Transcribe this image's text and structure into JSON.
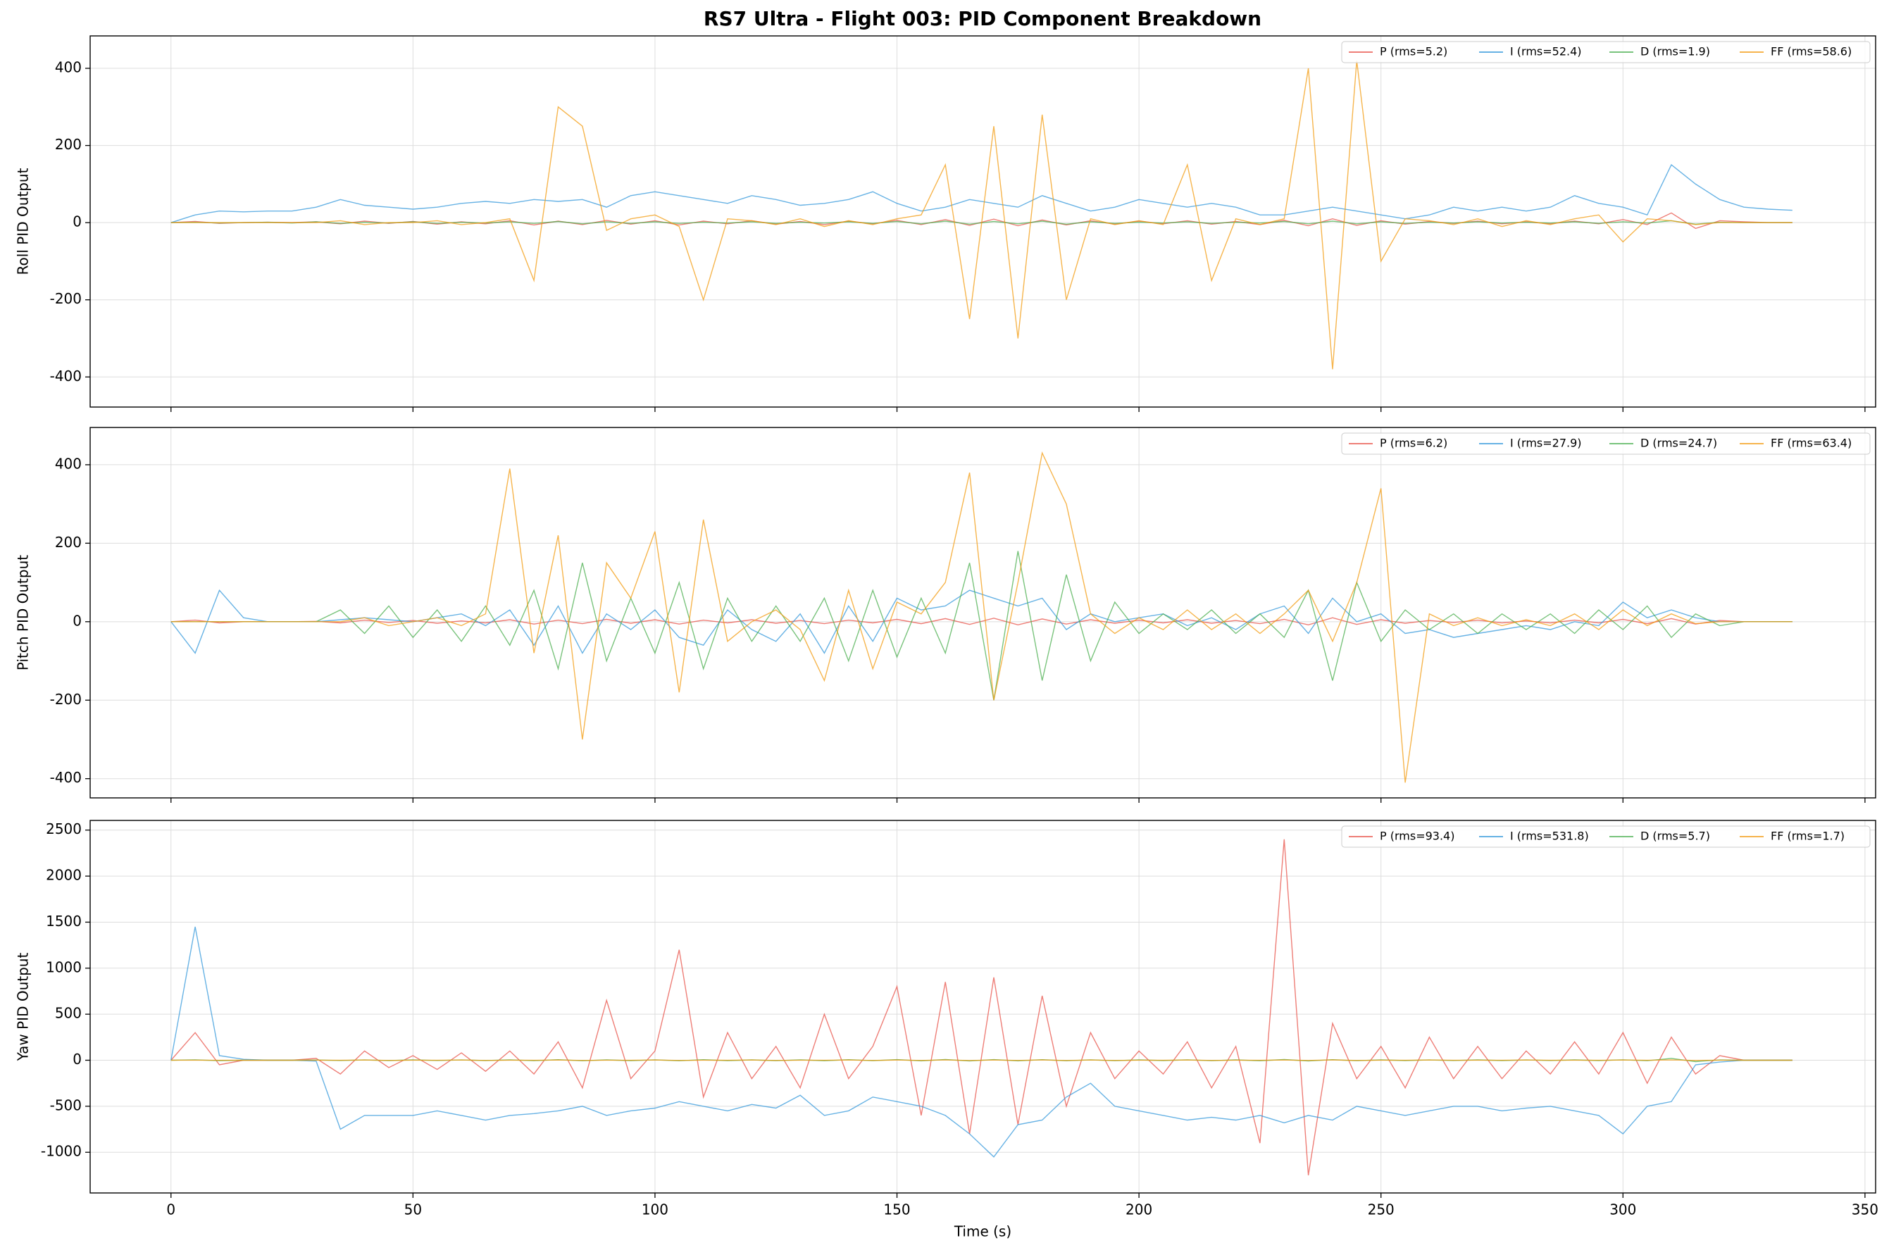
{
  "title": "RS7 Ultra - Flight 003: PID Component Breakdown",
  "chart_data": [
    {
      "type": "line",
      "ylabel": "Roll PID Output",
      "x": [
        0,
        5,
        10,
        15,
        20,
        25,
        30,
        35,
        40,
        45,
        50,
        55,
        60,
        65,
        70,
        75,
        80,
        85,
        90,
        95,
        100,
        105,
        110,
        115,
        120,
        125,
        130,
        135,
        140,
        145,
        150,
        155,
        160,
        165,
        170,
        175,
        180,
        185,
        190,
        195,
        200,
        205,
        210,
        215,
        220,
        225,
        230,
        235,
        240,
        245,
        250,
        255,
        260,
        265,
        270,
        275,
        280,
        285,
        290,
        295,
        300,
        305,
        310,
        315,
        320,
        325,
        330,
        335
      ],
      "xlim": [
        -16.7,
        352.2
      ],
      "xticks": [
        0,
        50,
        100,
        150,
        200,
        250,
        300,
        350
      ],
      "ylim": [
        -478,
        484
      ],
      "yticks": [
        -400,
        -200,
        0,
        200,
        400
      ],
      "grid": true,
      "legend": "upper right",
      "series": [
        {
          "name": "P (rms=5.2)",
          "color": "#e8534a",
          "values": [
            0,
            3,
            -2,
            0,
            1,
            0,
            2,
            -3,
            4,
            -2,
            3,
            -4,
            2,
            -3,
            5,
            -6,
            4,
            -5,
            6,
            -4,
            5,
            -6,
            4,
            -3,
            5,
            -4,
            3,
            -5,
            4,
            -3,
            6,
            -5,
            8,
            -7,
            9,
            -8,
            7,
            -6,
            5,
            -4,
            4,
            -3,
            5,
            -4,
            3,
            -5,
            6,
            -8,
            10,
            -7,
            5,
            -4,
            3,
            -2,
            4,
            -3,
            2,
            -3,
            4,
            -3,
            8,
            -5,
            25,
            -15,
            5,
            2,
            0,
            0
          ]
        },
        {
          "name": "I (rms=52.4)",
          "color": "#3498db",
          "values": [
            0,
            20,
            30,
            28,
            30,
            30,
            40,
            60,
            45,
            40,
            35,
            40,
            50,
            55,
            50,
            60,
            55,
            60,
            40,
            70,
            80,
            70,
            60,
            50,
            70,
            60,
            45,
            50,
            60,
            80,
            50,
            30,
            40,
            60,
            50,
            40,
            70,
            50,
            30,
            40,
            60,
            50,
            40,
            50,
            40,
            20,
            20,
            30,
            40,
            30,
            20,
            10,
            20,
            40,
            30,
            40,
            30,
            40,
            70,
            50,
            40,
            20,
            150,
            100,
            60,
            40,
            35,
            32
          ]
        },
        {
          "name": "D (rms=1.9)",
          "color": "#4caf50",
          "values": [
            0,
            1,
            -1,
            0,
            1,
            -1,
            2,
            -2,
            1,
            -1,
            2,
            -2,
            1,
            -1,
            2,
            -2,
            3,
            -3,
            2,
            -2,
            2,
            -2,
            1,
            -1,
            2,
            -2,
            1,
            -1,
            2,
            -2,
            3,
            -3,
            4,
            -4,
            3,
            -3,
            4,
            -4,
            2,
            -2,
            1,
            -1,
            2,
            -2,
            1,
            -1,
            3,
            -3,
            4,
            -3,
            2,
            -2,
            1,
            -1,
            2,
            -1,
            1,
            -1,
            2,
            -2,
            2,
            -1,
            5,
            -4,
            1,
            0,
            0,
            0
          ]
        },
        {
          "name": "FF (rms=58.6)",
          "color": "#f39c12",
          "values": [
            0,
            0,
            0,
            0,
            0,
            0,
            0,
            5,
            -5,
            0,
            0,
            5,
            -5,
            0,
            10,
            -150,
            300,
            250,
            -20,
            10,
            20,
            -10,
            -200,
            10,
            5,
            -5,
            10,
            -10,
            5,
            -5,
            10,
            20,
            150,
            -250,
            250,
            -300,
            280,
            -200,
            10,
            -5,
            5,
            -5,
            150,
            -150,
            10,
            -5,
            10,
            400,
            -380,
            420,
            -100,
            10,
            5,
            -5,
            10,
            -10,
            5,
            -5,
            10,
            20,
            -50,
            10,
            5,
            -5,
            0,
            0,
            0,
            0
          ]
        }
      ]
    },
    {
      "type": "line",
      "ylabel": "Pitch PID Output",
      "x": [
        0,
        5,
        10,
        15,
        20,
        25,
        30,
        35,
        40,
        45,
        50,
        55,
        60,
        65,
        70,
        75,
        80,
        85,
        90,
        95,
        100,
        105,
        110,
        115,
        120,
        125,
        130,
        135,
        140,
        145,
        150,
        155,
        160,
        165,
        170,
        175,
        180,
        185,
        190,
        195,
        200,
        205,
        210,
        215,
        220,
        225,
        230,
        235,
        240,
        245,
        250,
        255,
        260,
        265,
        270,
        275,
        280,
        285,
        290,
        295,
        300,
        305,
        310,
        315,
        320,
        325,
        330,
        335
      ],
      "xlim": [
        -16.7,
        352.2
      ],
      "xticks": [
        0,
        50,
        100,
        150,
        200,
        250,
        300,
        350
      ],
      "ylim": [
        -449,
        495
      ],
      "yticks": [
        -400,
        -200,
        0,
        200,
        400
      ],
      "grid": true,
      "legend": "upper right",
      "series": [
        {
          "name": "P (rms=6.2)",
          "color": "#e8534a",
          "values": [
            0,
            4,
            -3,
            0,
            0,
            0,
            1,
            -3,
            4,
            -2,
            3,
            -4,
            2,
            -3,
            5,
            -6,
            4,
            -5,
            6,
            -4,
            5,
            -6,
            4,
            -3,
            5,
            -4,
            3,
            -5,
            4,
            -3,
            6,
            -5,
            8,
            -7,
            9,
            -8,
            7,
            -6,
            5,
            -4,
            4,
            -3,
            5,
            -4,
            3,
            -5,
            6,
            -8,
            10,
            -7,
            5,
            -4,
            3,
            -2,
            4,
            -3,
            2,
            -3,
            4,
            -3,
            6,
            -5,
            8,
            -6,
            3,
            0,
            0,
            0
          ]
        },
        {
          "name": "I (rms=27.9)",
          "color": "#3498db",
          "values": [
            0,
            -80,
            80,
            10,
            0,
            0,
            0,
            5,
            10,
            5,
            0,
            10,
            20,
            -10,
            30,
            -60,
            40,
            -80,
            20,
            -20,
            30,
            -40,
            -60,
            30,
            -20,
            -50,
            20,
            -80,
            40,
            -50,
            60,
            30,
            40,
            80,
            60,
            40,
            60,
            -20,
            20,
            0,
            10,
            20,
            -10,
            10,
            -20,
            20,
            40,
            -30,
            60,
            0,
            20,
            -30,
            -20,
            -40,
            -30,
            -20,
            -10,
            -20,
            0,
            -10,
            50,
            10,
            30,
            10,
            0,
            0,
            0,
            0
          ]
        },
        {
          "name": "D (rms=24.7)",
          "color": "#4caf50",
          "values": [
            0,
            0,
            0,
            0,
            0,
            0,
            0,
            30,
            -30,
            40,
            -40,
            30,
            -50,
            40,
            -60,
            80,
            -120,
            150,
            -100,
            60,
            -80,
            100,
            -120,
            60,
            -50,
            40,
            -50,
            60,
            -100,
            80,
            -90,
            60,
            -80,
            150,
            -200,
            180,
            -150,
            120,
            -100,
            50,
            -30,
            20,
            -20,
            30,
            -30,
            20,
            -40,
            80,
            -150,
            100,
            -50,
            30,
            -20,
            20,
            -30,
            20,
            -20,
            20,
            -30,
            30,
            -20,
            40,
            -40,
            20,
            -10,
            0,
            0,
            0
          ]
        },
        {
          "name": "FF (rms=63.4)",
          "color": "#f39c12",
          "values": [
            0,
            0,
            0,
            0,
            0,
            0,
            0,
            0,
            10,
            -10,
            0,
            10,
            -10,
            20,
            390,
            -80,
            220,
            -300,
            150,
            60,
            230,
            -180,
            260,
            -50,
            0,
            30,
            -20,
            -150,
            80,
            -120,
            50,
            20,
            100,
            380,
            -200,
            100,
            430,
            300,
            20,
            -30,
            10,
            -20,
            30,
            -20,
            20,
            -30,
            20,
            80,
            -50,
            100,
            340,
            -410,
            20,
            -10,
            10,
            -10,
            5,
            -10,
            20,
            -20,
            30,
            -10,
            20,
            -5,
            0,
            0,
            0,
            0
          ]
        }
      ]
    },
    {
      "type": "line",
      "ylabel": "Yaw PID Output",
      "xlabel": "Time (s)",
      "x": [
        0,
        5,
        10,
        15,
        20,
        25,
        30,
        35,
        40,
        45,
        50,
        55,
        60,
        65,
        70,
        75,
        80,
        85,
        90,
        95,
        100,
        105,
        110,
        115,
        120,
        125,
        130,
        135,
        140,
        145,
        150,
        155,
        160,
        165,
        170,
        175,
        180,
        185,
        190,
        195,
        200,
        205,
        210,
        215,
        220,
        225,
        230,
        235,
        240,
        245,
        250,
        255,
        260,
        265,
        270,
        275,
        280,
        285,
        290,
        295,
        300,
        305,
        310,
        315,
        320,
        325,
        330,
        335
      ],
      "xlim": [
        -16.7,
        352.2
      ],
      "xticks": [
        0,
        50,
        100,
        150,
        200,
        250,
        300,
        350
      ],
      "ylim": [
        -1442,
        2605
      ],
      "yticks": [
        -1000,
        -500,
        0,
        500,
        1000,
        1500,
        2000,
        2500
      ],
      "grid": true,
      "legend": "upper right",
      "series": [
        {
          "name": "P (rms=93.4)",
          "color": "#e8534a",
          "values": [
            0,
            300,
            -50,
            0,
            0,
            0,
            20,
            -150,
            100,
            -80,
            50,
            -100,
            80,
            -120,
            100,
            -150,
            200,
            -300,
            650,
            -200,
            100,
            1200,
            -400,
            300,
            -200,
            150,
            -300,
            500,
            -200,
            150,
            800,
            -600,
            850,
            -800,
            900,
            -700,
            700,
            -500,
            300,
            -200,
            100,
            -150,
            200,
            -300,
            150,
            -900,
            2400,
            -1250,
            400,
            -200,
            150,
            -300,
            250,
            -200,
            150,
            -200,
            100,
            -150,
            200,
            -150,
            300,
            -250,
            250,
            -150,
            50,
            0,
            0,
            0
          ]
        },
        {
          "name": "I (rms=531.8)",
          "color": "#3498db",
          "values": [
            0,
            1450,
            50,
            10,
            0,
            0,
            -10,
            -750,
            -600,
            -600,
            -600,
            -550,
            -600,
            -650,
            -600,
            -580,
            -550,
            -500,
            -600,
            -550,
            -520,
            -450,
            -500,
            -550,
            -480,
            -520,
            -380,
            -600,
            -550,
            -400,
            -450,
            -500,
            -600,
            -800,
            -1050,
            -700,
            -650,
            -400,
            -250,
            -500,
            -550,
            -600,
            -650,
            -620,
            -650,
            -600,
            -680,
            -600,
            -650,
            -500,
            -550,
            -600,
            -550,
            -500,
            -500,
            -550,
            -520,
            -500,
            -550,
            -600,
            -800,
            -500,
            -450,
            -50,
            -20,
            0,
            0,
            0
          ]
        },
        {
          "name": "D (rms=5.7)",
          "color": "#4caf50",
          "values": [
            0,
            5,
            -5,
            0,
            0,
            0,
            2,
            -3,
            3,
            -4,
            4,
            -3,
            3,
            -4,
            5,
            -5,
            6,
            -6,
            5,
            -5,
            5,
            -6,
            6,
            -5,
            4,
            -5,
            5,
            -6,
            6,
            -5,
            7,
            -7,
            8,
            -8,
            7,
            -7,
            6,
            -6,
            5,
            -5,
            4,
            -4,
            5,
            -5,
            4,
            -6,
            8,
            -8,
            6,
            -5,
            4,
            -4,
            3,
            -3,
            4,
            -4,
            3,
            -3,
            4,
            -4,
            5,
            -5,
            20,
            -15,
            3,
            0,
            0,
            0
          ]
        },
        {
          "name": "FF (rms=1.7)",
          "color": "#f39c12",
          "values": [
            0,
            1,
            -1,
            0,
            0,
            0,
            1,
            -1,
            2,
            -2,
            1,
            -1,
            2,
            -2,
            1,
            -1,
            2,
            -2,
            1,
            -1,
            2,
            -2,
            1,
            -1,
            2,
            -2,
            1,
            -1,
            2,
            -2,
            2,
            -2,
            3,
            -3,
            2,
            -2,
            3,
            -3,
            2,
            -2,
            1,
            -1,
            2,
            -2,
            1,
            -1,
            2,
            -2,
            3,
            -2,
            1,
            -1,
            2,
            -1,
            1,
            -1,
            2,
            -1,
            1,
            -1,
            2,
            -1,
            3,
            -2,
            1,
            0,
            0,
            0
          ]
        }
      ]
    }
  ]
}
